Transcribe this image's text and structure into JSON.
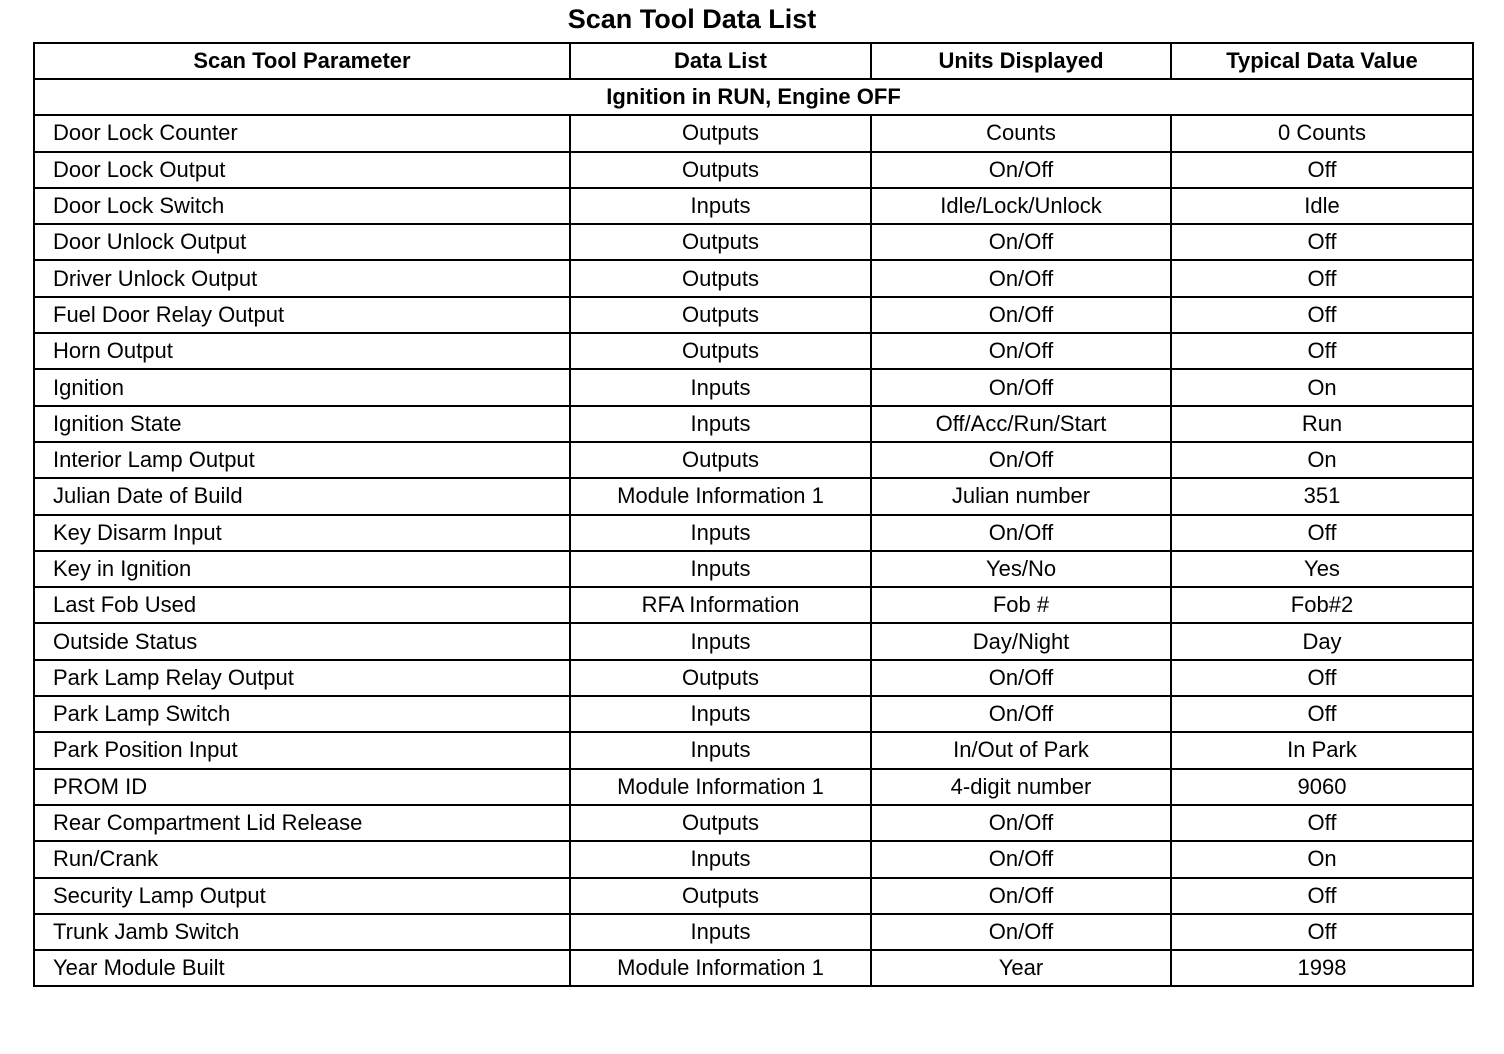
{
  "title": "Scan Tool Data List",
  "columns": [
    "Scan Tool Parameter",
    "Data List",
    "Units Displayed",
    "Typical Data Value"
  ],
  "section": "Ignition in RUN, Engine OFF",
  "rows": [
    [
      "Door Lock Counter",
      "Outputs",
      "Counts",
      "0 Counts"
    ],
    [
      "Door Lock Output",
      "Outputs",
      "On/Off",
      "Off"
    ],
    [
      "Door Lock Switch",
      "Inputs",
      "Idle/Lock/Unlock",
      "Idle"
    ],
    [
      "Door Unlock Output",
      "Outputs",
      "On/Off",
      "Off"
    ],
    [
      "Driver Unlock Output",
      "Outputs",
      "On/Off",
      "Off"
    ],
    [
      "Fuel Door Relay Output",
      "Outputs",
      "On/Off",
      "Off"
    ],
    [
      "Horn Output",
      "Outputs",
      "On/Off",
      "Off"
    ],
    [
      "Ignition",
      "Inputs",
      "On/Off",
      "On"
    ],
    [
      "Ignition State",
      "Inputs",
      "Off/Acc/Run/Start",
      "Run"
    ],
    [
      "Interior Lamp Output",
      "Outputs",
      "On/Off",
      "On"
    ],
    [
      "Julian Date of Build",
      "Module Information 1",
      "Julian number",
      "351"
    ],
    [
      "Key Disarm Input",
      "Inputs",
      "On/Off",
      "Off"
    ],
    [
      "Key in Ignition",
      "Inputs",
      "Yes/No",
      "Yes"
    ],
    [
      "Last Fob Used",
      "RFA Information",
      "Fob #",
      "Fob#2"
    ],
    [
      "Outside Status",
      "Inputs",
      "Day/Night",
      "Day"
    ],
    [
      "Park Lamp Relay Output",
      "Outputs",
      "On/Off",
      "Off"
    ],
    [
      "Park Lamp Switch",
      "Inputs",
      "On/Off",
      "Off"
    ],
    [
      "Park Position Input",
      "Inputs",
      "In/Out of Park",
      "In Park"
    ],
    [
      "PROM ID",
      "Module Information 1",
      "4-digit number",
      "9060"
    ],
    [
      "Rear Compartment Lid Release",
      "Outputs",
      "On/Off",
      "Off"
    ],
    [
      "Run/Crank",
      "Inputs",
      "On/Off",
      "On"
    ],
    [
      "Security Lamp Output",
      "Outputs",
      "On/Off",
      "Off"
    ],
    [
      "Trunk Jamb Switch",
      "Inputs",
      "On/Off",
      "Off"
    ],
    [
      "Year Module Built",
      "Module Information 1",
      "Year",
      "1998"
    ]
  ]
}
